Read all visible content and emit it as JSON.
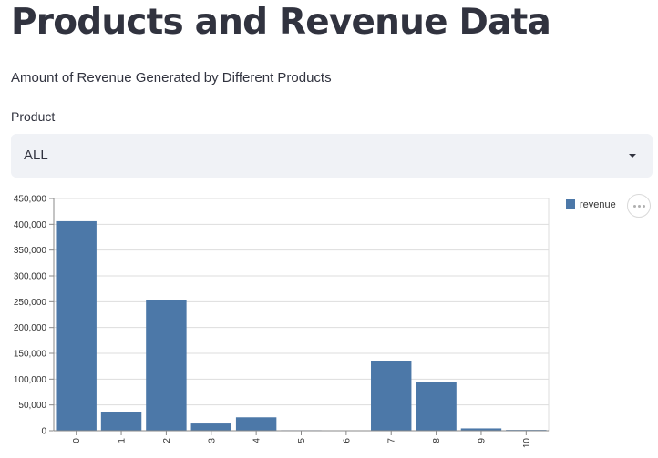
{
  "header": {
    "title": "Products and Revenue Data",
    "subtitle": "Amount of Revenue Generated by Different Products"
  },
  "filter": {
    "label": "Product",
    "selected": "ALL",
    "caret_icon": "chevron-down-icon"
  },
  "chart_menu": {
    "icon": "more-horizontal-icon"
  },
  "colors": {
    "bar": "#4c78a8",
    "grid": "#dddddd",
    "axis": "#888888",
    "select_bg": "#f0f2f6",
    "text": "#31333f"
  },
  "chart_data": {
    "type": "bar",
    "title": "",
    "xlabel": "",
    "ylabel": "",
    "categories": [
      "0",
      "1",
      "2",
      "3",
      "4",
      "5",
      "6",
      "7",
      "8",
      "9",
      "10"
    ],
    "series": [
      {
        "name": "revenue",
        "values": [
          406000,
          37000,
          254000,
          14000,
          26000,
          1000,
          0,
          135000,
          95000,
          4500,
          1500
        ]
      }
    ],
    "ylim": [
      0,
      450000
    ],
    "yticks": [
      "0",
      "50,000",
      "100,000",
      "150,000",
      "200,000",
      "250,000",
      "300,000",
      "350,000",
      "400,000",
      "450,000"
    ],
    "grid": true,
    "legend_position": "top-right"
  }
}
